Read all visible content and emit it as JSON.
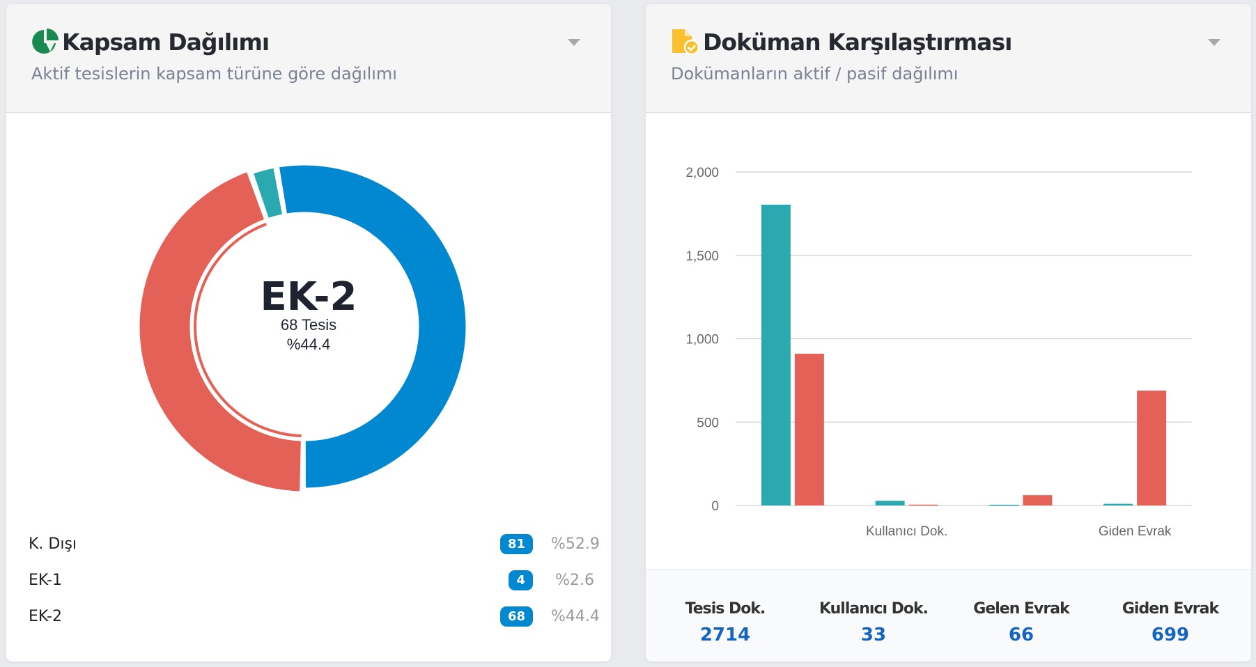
{
  "left_card": {
    "title": "Kapsam Dağılımı",
    "subtitle": "Aktif tesislerin kapsam türüne göre dağılımı",
    "icon": "pie-chart-icon",
    "center": {
      "label": "EK-2",
      "count": "68 Tesis",
      "percent": "%44.4"
    },
    "legend": [
      {
        "label": "K. Dışı",
        "count": "81",
        "percent": "%52.9",
        "value": 81,
        "color": "#0288d1"
      },
      {
        "label": "EK-1",
        "count": "4",
        "percent": "%2.6",
        "value": 4,
        "color": "#2aa9b0"
      },
      {
        "label": "EK-2",
        "count": "68",
        "percent": "%44.4",
        "value": 68,
        "color": "#e46158"
      }
    ],
    "selected": "EK-2"
  },
  "right_card": {
    "title": "Doküman Karşılaştırması",
    "subtitle": "Dokümanların aktif / pasif dağılımı",
    "icon": "document-check-icon",
    "stats": [
      {
        "label": "Tesis Dok.",
        "value": "2714"
      },
      {
        "label": "Kullanıcı Dok.",
        "value": "33"
      },
      {
        "label": "Gelen Evrak",
        "value": "66"
      },
      {
        "label": "Giden Evrak",
        "value": "699"
      }
    ]
  },
  "chart_data": {
    "type": "bar",
    "categories": [
      "Tesis Dok.",
      "Kullanıcı Dok.",
      "Gelen Evrak",
      "Giden Evrak"
    ],
    "visible_category_labels": [
      "",
      "Kullanıcı Dok.",
      "",
      "Giden Evrak"
    ],
    "series": [
      {
        "values": [
          1804,
          28,
          4,
          10
        ],
        "color": "#2aa9b0"
      },
      {
        "values": [
          910,
          5,
          62,
          689
        ],
        "color": "#e46158"
      }
    ],
    "ylim": [
      0,
      2000
    ],
    "yticks": [
      "0",
      "500",
      "1,000",
      "1,500",
      "2,000"
    ],
    "ytick_values": [
      0,
      500,
      1000,
      1500,
      2000
    ],
    "grid": true,
    "legend": "none"
  }
}
